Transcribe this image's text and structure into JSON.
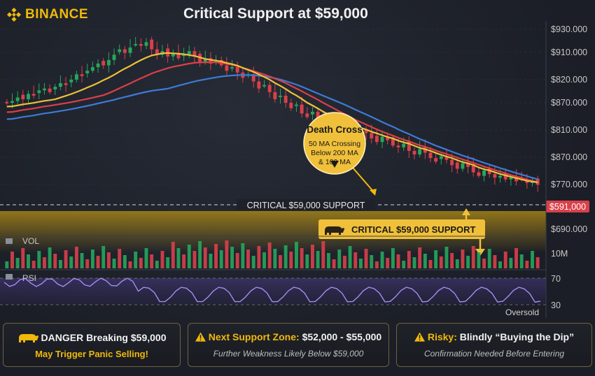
{
  "brand": "BINANCE",
  "title": "Critical Support at $59,000",
  "price_labels": [
    "$930.000",
    "$910.000",
    "$820.000",
    "$870.000",
    "$810.000",
    "$870.000",
    "$770.000",
    "$690.000"
  ],
  "current_price": "$591,000",
  "support_line_label": "CRITICAL $59,000 SUPPORT",
  "support_banner": "CRITICAL $59,000 SUPPORT",
  "death_cross": {
    "title": "Death Cross",
    "lines": [
      "50 MA Crossing",
      "Below 200 MA",
      "& 100 MA"
    ]
  },
  "volume": {
    "label": "VOL",
    "axis_label": "10M"
  },
  "rsi": {
    "label": "RSI",
    "level_70": "70",
    "level_30": "30",
    "oversold": "Oversold"
  },
  "panels": [
    {
      "icon": "bear-icon",
      "title": "DANGER Breaking $59,000",
      "subtitle": "May Trigger Panic Selling!"
    },
    {
      "icon": "warning-icon",
      "title_bold": "Next Support Zone:",
      "title_value": "$52,000 - $55,000",
      "subtitle": "Further Weakness Likely Below $59,000"
    },
    {
      "icon": "warning-icon",
      "title_bold": "Risky:",
      "title_value": "Blindly “Buying the Dip”",
      "subtitle": "Confirmation Needed Before Entering"
    }
  ],
  "colors": {
    "up": "#26a65b",
    "down": "#d9404a",
    "ma_fast": "#f0c03a",
    "ma_mid": "#d9404a",
    "ma_slow": "#3e7bd6",
    "rsi": "#a58cf0",
    "accent": "#f0b90b"
  },
  "chart_data": {
    "type": "candlestick",
    "title": "Critical Support at $59,000",
    "price_axis_ticks": [
      "$930.000",
      "$910.000",
      "$820.000",
      "$870.000",
      "$810.000",
      "$870.000",
      "$770.000",
      "$690.000"
    ],
    "support_level": 59000,
    "indicators": [
      "MA fast (yellow)",
      "MA 100 (red)",
      "MA 200 (blue)",
      "Volume",
      "RSI"
    ],
    "rsi_levels": [
      70,
      30
    ],
    "closes_relative": [
      0.58,
      0.59,
      0.61,
      0.6,
      0.63,
      0.62,
      0.65,
      0.66,
      0.64,
      0.67,
      0.69,
      0.68,
      0.71,
      0.74,
      0.73,
      0.76,
      0.78,
      0.8,
      0.79,
      0.82,
      0.85,
      0.88,
      0.86,
      0.89,
      0.91,
      0.9,
      0.92,
      0.88,
      0.85,
      0.87,
      0.84,
      0.86,
      0.83,
      0.85,
      0.87,
      0.84,
      0.81,
      0.83,
      0.8,
      0.82,
      0.79,
      0.76,
      0.78,
      0.75,
      0.72,
      0.74,
      0.7,
      0.66,
      0.68,
      0.64,
      0.6,
      0.62,
      0.58,
      0.55,
      0.57,
      0.52,
      0.5,
      0.53,
      0.49,
      0.46,
      0.48,
      0.47,
      0.44,
      0.45,
      0.42,
      0.4,
      0.43,
      0.41,
      0.38,
      0.36,
      0.39,
      0.37,
      0.34,
      0.33,
      0.35,
      0.31,
      0.29,
      0.32,
      0.3,
      0.27,
      0.25,
      0.28,
      0.26,
      0.23,
      0.21,
      0.24,
      0.22,
      0.19,
      0.17,
      0.2,
      0.18,
      0.16,
      0.17,
      0.15,
      0.16,
      0.14,
      0.15,
      0.13,
      0.14,
      0.12
    ]
  }
}
